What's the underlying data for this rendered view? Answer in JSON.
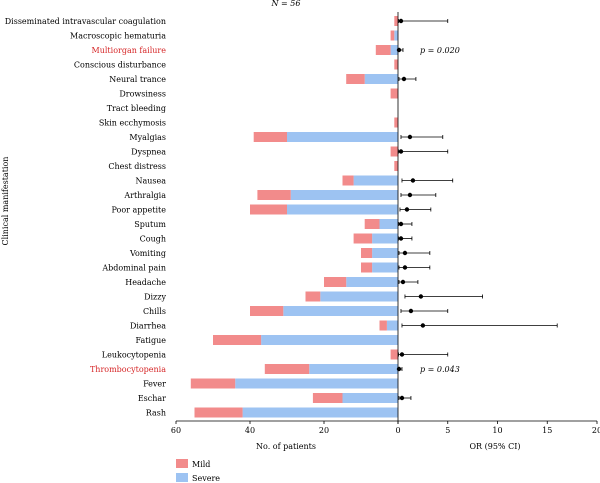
{
  "chart_data": {
    "type": "bar",
    "subtitle": "N = 56",
    "ylabel": "Clinical manifestation",
    "left_panel": {
      "xlabel": "No. of patients",
      "xlim": [
        60,
        0
      ],
      "ticks": [
        60,
        40,
        20,
        0
      ],
      "orientation": "horizontal stacked",
      "categories": [
        "Disseminated intravascular coagulation",
        "Macroscopic hematuria",
        "Multiorgan failure",
        "Conscious disturbance",
        "Neural trance",
        "Drowsiness",
        "Tract bleeding",
        "Skin ecchymosis",
        "Myalgias",
        "Dyspnea",
        "Chest distress",
        "Nausea",
        "Arthralgia",
        "Poor appetite",
        "Sputum",
        "Cough",
        "Vomiting",
        "Abdominal pain",
        "Headache",
        "Dizzy",
        "Chills",
        "Diarrhea",
        "Fatigue",
        "Leukocytopenia",
        "Thrombocytopenia",
        "Fever",
        "Eschar",
        "Rash"
      ],
      "highlighted_categories": [
        "Multiorgan failure",
        "Thrombocytopenia"
      ],
      "series": [
        {
          "name": "Severe",
          "color": "#9dc3f2",
          "values": [
            0,
            1,
            2,
            0,
            9,
            0,
            0,
            0,
            30,
            0,
            0,
            12,
            29,
            30,
            5,
            7,
            7,
            7,
            14,
            21,
            31,
            3,
            37,
            0,
            24,
            44,
            15,
            42
          ]
        },
        {
          "name": "Mild",
          "color": "#f28b8b",
          "values": [
            1,
            1,
            4,
            1,
            5,
            2,
            0,
            1,
            9,
            2,
            1,
            3,
            9,
            10,
            4,
            5,
            3,
            3,
            6,
            4,
            9,
            2,
            13,
            2,
            12,
            12,
            8,
            13
          ]
        }
      ]
    },
    "right_panel": {
      "type": "forest",
      "xlabel": "OR (95% CI)",
      "xlim": [
        0,
        20
      ],
      "ticks": [
        0,
        5,
        10,
        15,
        20
      ],
      "or": [
        0.3,
        null,
        0.1,
        null,
        0.6,
        null,
        null,
        null,
        1.2,
        0.3,
        null,
        1.5,
        1.2,
        0.9,
        0.3,
        0.3,
        0.7,
        0.7,
        0.5,
        2.3,
        1.3,
        2.5,
        null,
        0.4,
        0.1,
        null,
        0.4,
        null
      ],
      "ci_low": [
        0.05,
        null,
        0.02,
        null,
        0.1,
        null,
        null,
        null,
        0.3,
        0.05,
        null,
        0.4,
        0.3,
        0.2,
        0.05,
        0.05,
        0.1,
        0.1,
        0.1,
        0.7,
        0.3,
        0.4,
        null,
        0.05,
        0.02,
        null,
        0.1,
        null
      ],
      "ci_high": [
        5.0,
        null,
        0.5,
        null,
        1.8,
        null,
        null,
        null,
        4.5,
        5.0,
        null,
        5.5,
        3.8,
        3.3,
        1.4,
        1.4,
        3.2,
        3.2,
        2.0,
        8.5,
        5.0,
        16.0,
        null,
        5.0,
        0.4,
        null,
        1.3,
        null
      ],
      "annotations": [
        {
          "category": "Multiorgan failure",
          "text": "p = 0.020"
        },
        {
          "category": "Thrombocytopenia",
          "text": "p = 0.043"
        }
      ]
    },
    "legend": {
      "placement": "bottom-left",
      "entries": [
        "Mild",
        "Severe"
      ]
    },
    "colors": {
      "highlight_label": "#d62728",
      "text": "#000000"
    }
  }
}
